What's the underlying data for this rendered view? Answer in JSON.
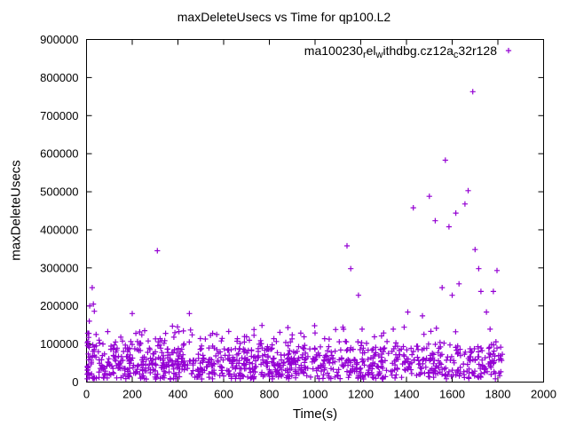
{
  "chart_data": {
    "type": "scatter",
    "title": "maxDeleteUsecs vs Time for qp100.L2",
    "xlabel": "Time(s)",
    "ylabel": "maxDeleteUsecs",
    "xlim": [
      0,
      2000
    ],
    "ylim": [
      0,
      900000
    ],
    "xticks": [
      0,
      200,
      400,
      600,
      800,
      1000,
      1200,
      1400,
      1600,
      1800,
      2000
    ],
    "yticks": [
      0,
      100000,
      200000,
      300000,
      400000,
      500000,
      600000,
      700000,
      800000,
      900000
    ],
    "grid": false,
    "marker": "plus",
    "color": "#9400d3",
    "axis_color": "#000000",
    "legend": {
      "position": "top-right-inside",
      "name": "ma100230_rel_withdbg.cz12a_c32r128",
      "segments": [
        {
          "text": "ma100230",
          "sub": false
        },
        {
          "text": "r",
          "sub": true
        },
        {
          "text": "el",
          "sub": false
        },
        {
          "text": "w",
          "sub": true
        },
        {
          "text": "ithdbg.cz12a",
          "sub": false
        },
        {
          "text": "c",
          "sub": true
        },
        {
          "text": "32r128",
          "sub": false
        }
      ]
    },
    "band": {
      "note": "dense baseline scatter of maxDeleteUsecs mostly 10k-140k across whole run",
      "seed": 1337,
      "count": 1050,
      "x_range": [
        3,
        1820
      ],
      "y_core_range": [
        8000,
        110000
      ],
      "y_tail_max": 150000
    },
    "start_column": {
      "note": "vertical cluster of points at run start",
      "count": 14,
      "x_range": [
        2,
        12
      ],
      "y_range": [
        8000,
        130000
      ]
    },
    "outliers": [
      [
        8,
        95000
      ],
      [
        10,
        128000
      ],
      [
        12,
        160000
      ],
      [
        14,
        200000
      ],
      [
        25,
        248000
      ],
      [
        30,
        205000
      ],
      [
        34,
        186000
      ],
      [
        42,
        125000
      ],
      [
        55,
        110000
      ],
      [
        72,
        100000
      ],
      [
        150,
        118000
      ],
      [
        200,
        180000
      ],
      [
        216,
        128000
      ],
      [
        242,
        124000
      ],
      [
        270,
        108000
      ],
      [
        310,
        345000
      ],
      [
        322,
        114000
      ],
      [
        346,
        128000
      ],
      [
        382,
        118000
      ],
      [
        450,
        180000
      ],
      [
        462,
        124000
      ],
      [
        520,
        113000
      ],
      [
        552,
        128000
      ],
      [
        590,
        108000
      ],
      [
        622,
        133000
      ],
      [
        660,
        114000
      ],
      [
        700,
        119000
      ],
      [
        762,
        109000
      ],
      [
        820,
        114000
      ],
      [
        872,
        104000
      ],
      [
        900,
        124000
      ],
      [
        952,
        119000
      ],
      [
        1000,
        129000
      ],
      [
        1042,
        114000
      ],
      [
        1090,
        138000
      ],
      [
        1122,
        144000
      ],
      [
        1140,
        358000
      ],
      [
        1156,
        298000
      ],
      [
        1190,
        228000
      ],
      [
        1206,
        139000
      ],
      [
        1260,
        119000
      ],
      [
        1300,
        129000
      ],
      [
        1342,
        139000
      ],
      [
        1390,
        144000
      ],
      [
        1406,
        184000
      ],
      [
        1430,
        458000
      ],
      [
        1470,
        174000
      ],
      [
        1500,
        488000
      ],
      [
        1526,
        424000
      ],
      [
        1556,
        248000
      ],
      [
        1570,
        583000
      ],
      [
        1586,
        408000
      ],
      [
        1600,
        228000
      ],
      [
        1616,
        444000
      ],
      [
        1630,
        258000
      ],
      [
        1656,
        468000
      ],
      [
        1670,
        503000
      ],
      [
        1690,
        763000
      ],
      [
        1700,
        348000
      ],
      [
        1716,
        298000
      ],
      [
        1726,
        238000
      ],
      [
        1750,
        184000
      ],
      [
        1766,
        139000
      ],
      [
        1780,
        238000
      ],
      [
        1796,
        293000
      ]
    ]
  }
}
